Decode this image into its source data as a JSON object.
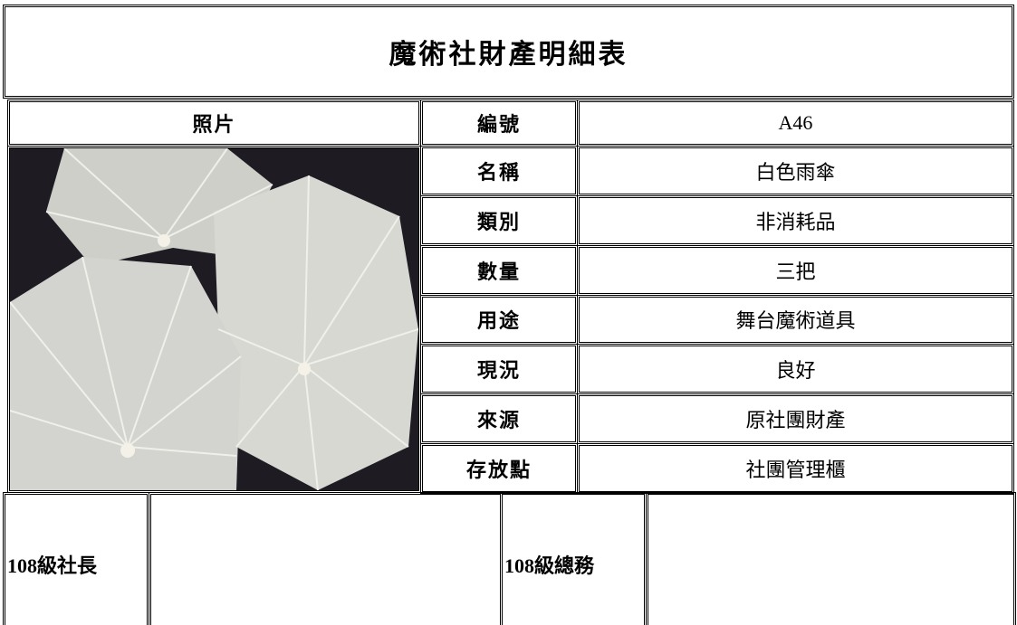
{
  "title": "魔術社財產明細表",
  "photo_label": "照片",
  "fields": [
    {
      "label": "編號",
      "value": "A46"
    },
    {
      "label": "名稱",
      "value": "白色雨傘"
    },
    {
      "label": "類別",
      "value": "非消耗品"
    },
    {
      "label": "數量",
      "value": "三把"
    },
    {
      "label": "用途",
      "value": "舞台魔術道具"
    },
    {
      "label": "現況",
      "value": "良好"
    },
    {
      "label": "來源",
      "value": "原社團財產"
    },
    {
      "label": "存放點",
      "value": "社團管理櫃"
    }
  ],
  "signatures": [
    {
      "label": "108級社長"
    },
    {
      "label": "108級總務"
    }
  ]
}
